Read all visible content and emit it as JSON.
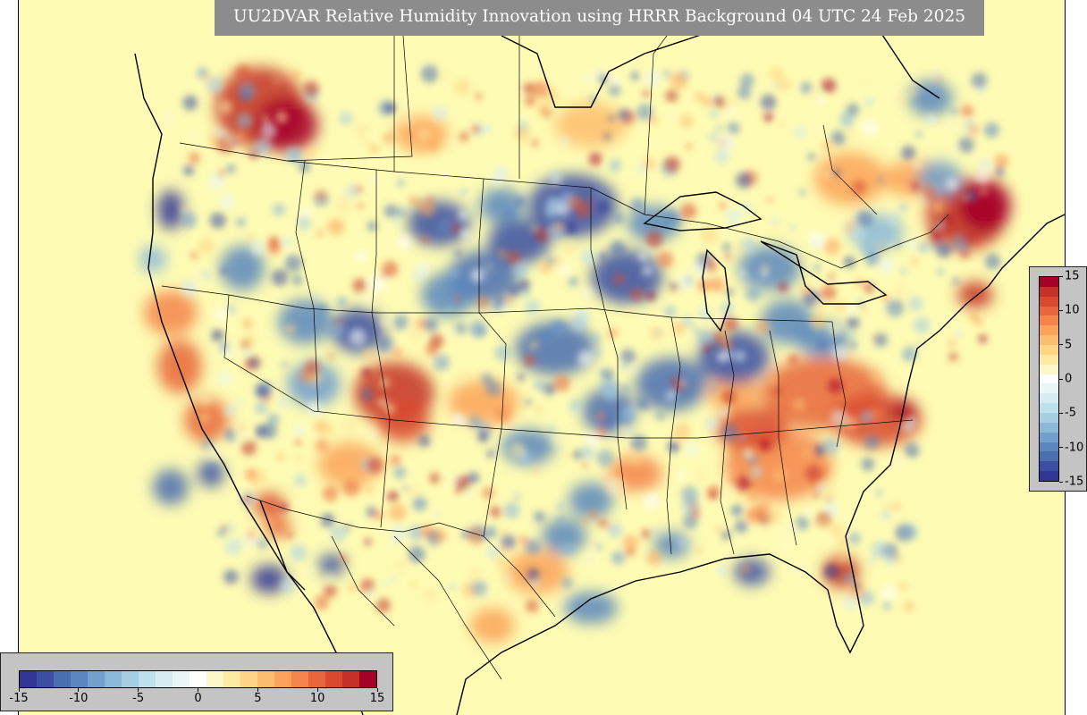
{
  "title": "UU2DVAR Relative Humidity Innovation using HRRR Background 04 UTC 24 Feb 2025",
  "colorbar": {
    "min": -15,
    "max": 15,
    "tick_labels": [
      "-15",
      "-10",
      "-5",
      "0",
      "5",
      "10",
      "15"
    ],
    "tick_values": [
      -15,
      -10,
      -5,
      0,
      5,
      10,
      15
    ],
    "colors": [
      "#313695",
      "#3a4fa2",
      "#4a6fb1",
      "#5b87be",
      "#729fcc",
      "#8ab8d9",
      "#a6cee3",
      "#bedfec",
      "#d6ebf2",
      "#eaf5f5",
      "#ffffff",
      "#fbf7c9",
      "#fde9a2",
      "#fed587",
      "#fdbd6e",
      "#fba35b",
      "#f4854a",
      "#e8663b",
      "#d84a30",
      "#c33127",
      "#a50026"
    ]
  },
  "map": {
    "background_color": "#fefbb4",
    "field_description": "Relative humidity innovation over CONUS, southern Canada and northern Mexico"
  }
}
